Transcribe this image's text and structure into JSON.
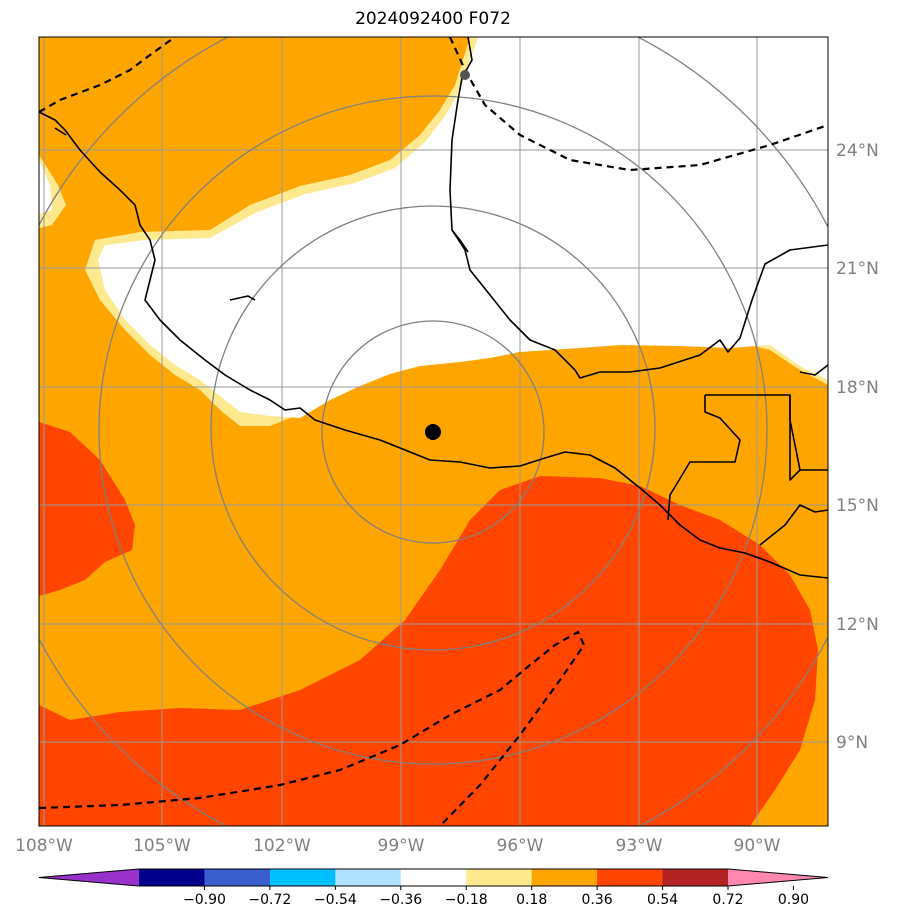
{
  "title": "2024092400 F072",
  "colors": {
    "white": "#ffffff",
    "light_yellow": "#ffe98f",
    "orange": "#ffa500",
    "red_orange": "#ff4500",
    "grid": "#999999",
    "range_rings": "#808080",
    "coast": "#000000",
    "storm_center": "#000000"
  },
  "map": {
    "lon_labels": [
      "108°W",
      "105°W",
      "102°W",
      "99°W",
      "96°W",
      "93°W",
      "90°W"
    ],
    "lat_labels": [
      "24°N",
      "21°N",
      "18°N",
      "15°N",
      "12°N",
      "9°N"
    ],
    "storm_center": {
      "lon": -98.2,
      "lat": 16.9,
      "icon": "filled-circle"
    },
    "range_rings_count": 4
  },
  "colorbar": {
    "ticks": [
      "−0.90",
      "−0.72",
      "−0.54",
      "−0.36",
      "−0.18",
      "0.18",
      "0.36",
      "0.54",
      "0.72",
      "0.90"
    ],
    "colors": [
      "#9932cc",
      "#00008b",
      "#3a5fcd",
      "#00bfff",
      "#b0e2ff",
      "#ffffff",
      "#ffe98f",
      "#ffa500",
      "#ff4500",
      "#b22222",
      "#ff88b0"
    ]
  }
}
